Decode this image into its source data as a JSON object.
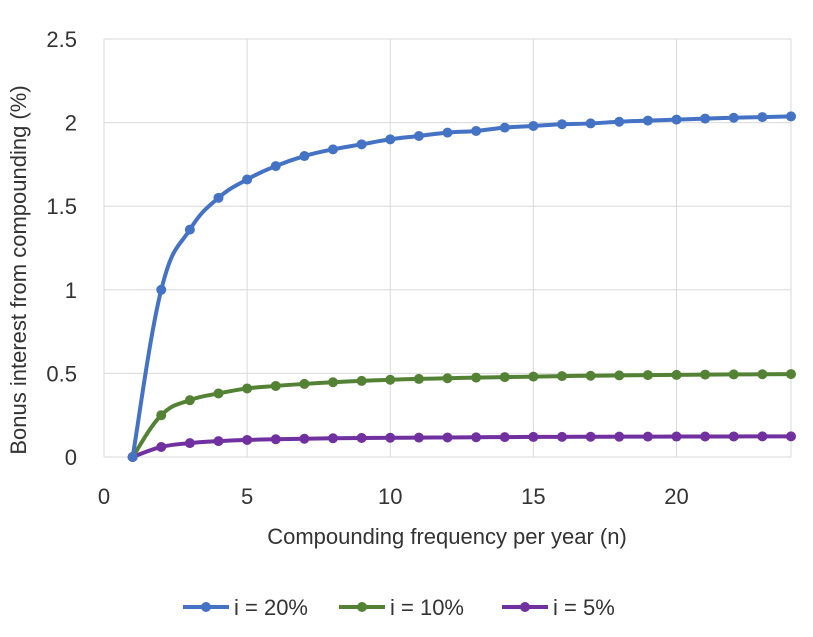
{
  "chart_data": {
    "type": "line",
    "title": "",
    "xlabel": "Compounding frequency per year (n)",
    "ylabel": "Bonus interest from compounding (%)",
    "xlim": [
      0,
      24
    ],
    "ylim": [
      0,
      2.5
    ],
    "xticks": [
      0,
      5,
      10,
      15,
      20
    ],
    "xtick_labels": [
      "0",
      "5",
      "10",
      "15",
      "20"
    ],
    "yticks": [
      0,
      0.5,
      1,
      1.5,
      2,
      2.5
    ],
    "ytick_labels": [
      "0",
      "0.5",
      "1",
      "1.5",
      "2",
      "2.5"
    ],
    "grid": true,
    "legend_position": "bottom",
    "x": [
      1,
      2,
      3,
      4,
      5,
      6,
      7,
      8,
      9,
      10,
      11,
      12,
      13,
      14,
      15,
      16,
      17,
      18,
      19,
      20,
      21,
      22,
      23,
      24
    ],
    "series": [
      {
        "name": "i = 20%",
        "color": "#4472C4",
        "values": [
          0,
          1.0,
          1.36,
          1.55,
          1.66,
          1.74,
          1.8,
          1.84,
          1.87,
          1.9,
          1.92,
          1.94,
          1.95,
          1.97,
          1.98,
          1.99,
          1.995,
          2.005,
          2.012,
          2.018,
          2.024,
          2.029,
          2.033,
          2.037
        ]
      },
      {
        "name": "i = 10%",
        "color": "#548235",
        "values": [
          0,
          0.25,
          0.34,
          0.38,
          0.41,
          0.425,
          0.437,
          0.447,
          0.455,
          0.462,
          0.467,
          0.471,
          0.475,
          0.478,
          0.481,
          0.484,
          0.486,
          0.488,
          0.49,
          0.491,
          0.493,
          0.494,
          0.495,
          0.496
        ]
      },
      {
        "name": "i = 5%",
        "color": "#7030A0",
        "values": [
          0,
          0.06,
          0.083,
          0.095,
          0.102,
          0.106,
          0.109,
          0.112,
          0.114,
          0.115,
          0.116,
          0.117,
          0.118,
          0.119,
          0.12,
          0.1205,
          0.121,
          0.1215,
          0.122,
          0.1223,
          0.1226,
          0.1229,
          0.1232,
          0.1235
        ]
      }
    ]
  }
}
